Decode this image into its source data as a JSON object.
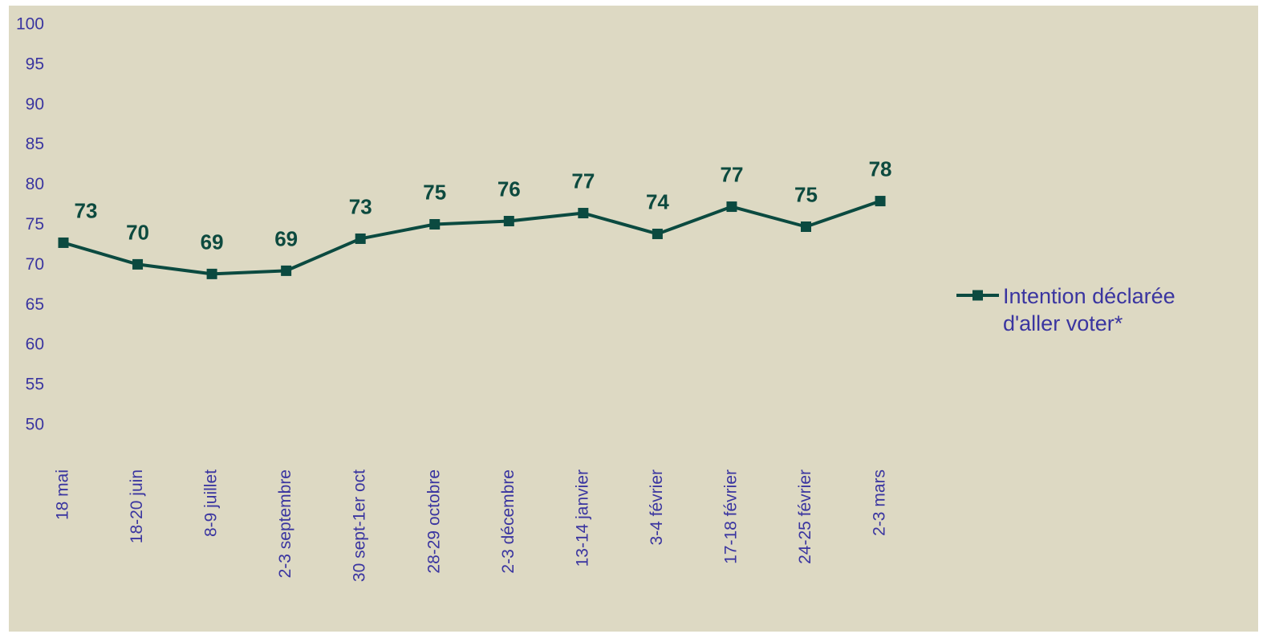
{
  "chart_data": {
    "type": "line",
    "categories": [
      "18 mai",
      "18-20 juin",
      "8-9 juillet",
      "2-3 septembre",
      "30 sept-1er oct",
      "28-29 octobre",
      "2-3 décembre",
      "13-14 janvier",
      "3-4 février",
      "17-18 février",
      "24-25 février",
      "2-3 mars"
    ],
    "series": [
      {
        "name": "Intention déclarée d'aller voter*",
        "color": "#0b4a40",
        "values": [
          72.8,
          70.1,
          68.9,
          69.3,
          73.3,
          75.1,
          75.5,
          76.5,
          73.9,
          77.3,
          74.8,
          78
        ],
        "value_labels": [
          "73",
          "70",
          "69",
          "69",
          "73",
          "75",
          "76",
          "77",
          "74",
          "77",
          "75",
          "78"
        ]
      }
    ],
    "ylim": [
      50,
      100
    ],
    "yticks": [
      50,
      55,
      60,
      65,
      70,
      75,
      80,
      85,
      90,
      95,
      100
    ],
    "grid": false,
    "legend": "right"
  }
}
